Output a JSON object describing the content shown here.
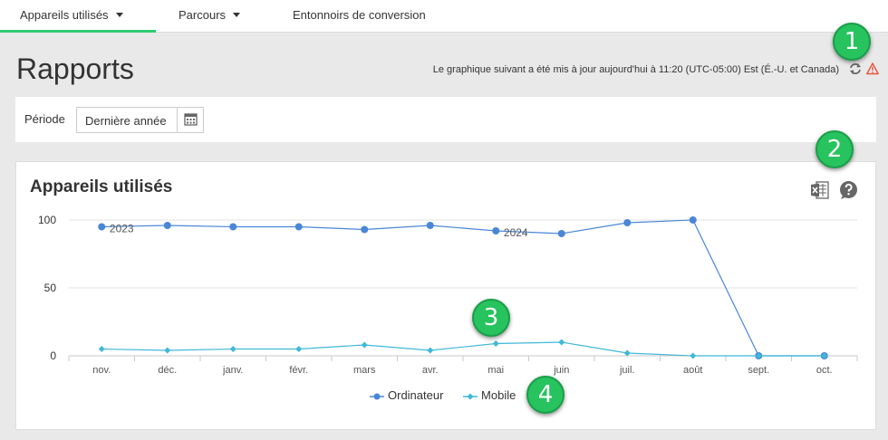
{
  "nav": {
    "tabs": [
      {
        "label": "Appareils utilisés",
        "active": true,
        "dropdown": true
      },
      {
        "label": "Parcours",
        "active": false,
        "dropdown": true
      },
      {
        "label": "Entonnoirs de conversion",
        "active": false,
        "dropdown": false
      }
    ]
  },
  "header": {
    "title": "Rapports",
    "update_note": "Le graphique suivant a été mis à jour aujourd'hui à 11:20 (UTC-05:00) Est (É.-U. et Canada)",
    "icons": [
      "refresh-icon",
      "warning-icon"
    ]
  },
  "period": {
    "label": "Période",
    "value": "Dernière année",
    "icon": "calendar-icon"
  },
  "chart_panel": {
    "title": "Appareils utilisés",
    "icons": [
      "excel-export-icon",
      "help-icon"
    ]
  },
  "chart_data": {
    "type": "line",
    "categories": [
      "nov.",
      "déc.",
      "janv.",
      "févr.",
      "mars",
      "avr.",
      "mai",
      "juin",
      "juil.",
      "août",
      "sept.",
      "oct."
    ],
    "series": [
      {
        "name": "Ordinateur",
        "color": "#4a86d6",
        "marker": "circle",
        "values": [
          95,
          96,
          95,
          95,
          93,
          96,
          92,
          90,
          98,
          100,
          0,
          0
        ]
      },
      {
        "name": "Mobile",
        "color": "#3fb8d9",
        "marker": "diamond",
        "values": [
          5,
          4,
          5,
          5,
          8,
          4,
          9,
          10,
          2,
          0,
          0,
          0
        ]
      }
    ],
    "year_labels": [
      {
        "label": "2023",
        "category": "nov."
      },
      {
        "label": "2024",
        "category": "mai"
      }
    ],
    "yticks": [
      0,
      50,
      100
    ],
    "ylim": [
      0,
      100
    ],
    "grid": true,
    "legend_position": "bottom-center"
  },
  "badges": [
    "1",
    "2",
    "3",
    "4"
  ],
  "colors": {
    "accent": "#2ecc71",
    "badge": "#27c35e",
    "warning": "#e8553f"
  }
}
